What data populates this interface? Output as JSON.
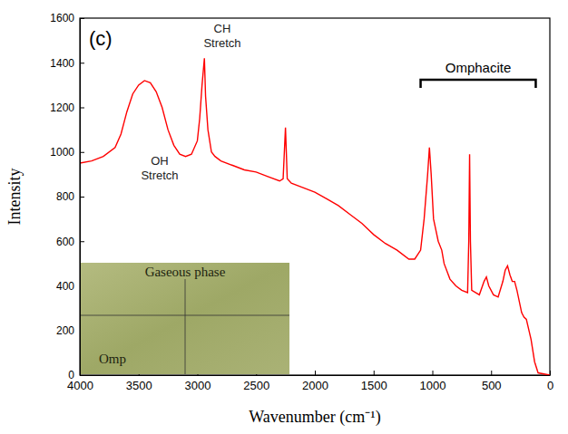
{
  "chart_data": {
    "type": "line",
    "panel_label": "(c)",
    "x_label": "Wavenumber (cm⁻¹)",
    "y_label": "Intensity",
    "color": "#ff0000",
    "xlim": [
      4000,
      0
    ],
    "ylim": [
      0,
      1600
    ],
    "xticks": [
      4000,
      3500,
      3000,
      2500,
      2000,
      1500,
      1000,
      500,
      0
    ],
    "yticks": [
      0,
      200,
      400,
      600,
      800,
      1000,
      1200,
      1400,
      1600
    ],
    "x": [
      4000,
      3900,
      3800,
      3700,
      3650,
      3600,
      3550,
      3500,
      3450,
      3400,
      3350,
      3300,
      3250,
      3200,
      3150,
      3100,
      3050,
      3000,
      2980,
      2960,
      2940,
      2930,
      2910,
      2880,
      2850,
      2800,
      2700,
      2600,
      2500,
      2400,
      2300,
      2270,
      2250,
      2235,
      2200,
      2100,
      2000,
      1900,
      1800,
      1700,
      1600,
      1500,
      1400,
      1300,
      1200,
      1150,
      1100,
      1070,
      1040,
      1025,
      1010,
      990,
      950,
      920,
      900,
      850,
      800,
      750,
      700,
      690,
      683,
      676,
      665,
      600,
      560,
      540,
      520,
      480,
      440,
      400,
      380,
      360,
      340,
      320,
      300,
      280,
      240,
      220,
      200,
      160,
      130,
      100,
      50,
      0
    ],
    "values": [
      950,
      960,
      980,
      1020,
      1080,
      1180,
      1260,
      1300,
      1320,
      1310,
      1270,
      1200,
      1100,
      1030,
      990,
      980,
      990,
      1050,
      1150,
      1300,
      1420,
      1250,
      1100,
      1000,
      980,
      960,
      940,
      920,
      910,
      890,
      870,
      880,
      1110,
      880,
      860,
      840,
      820,
      790,
      760,
      720,
      680,
      630,
      590,
      560,
      520,
      520,
      560,
      700,
      900,
      1020,
      900,
      700,
      600,
      560,
      500,
      430,
      400,
      380,
      370,
      600,
      990,
      600,
      380,
      360,
      420,
      440,
      400,
      360,
      350,
      420,
      470,
      490,
      450,
      420,
      420,
      380,
      280,
      260,
      250,
      160,
      60,
      10,
      5,
      0
    ],
    "annotations": [
      {
        "text": "CH Stretch"
      },
      {
        "text": "OH Stretch"
      },
      {
        "text": "Omphacite",
        "range": [
          1100,
          120
        ]
      }
    ],
    "inset": {
      "texts": [
        "Gaseous phase",
        "Omp"
      ]
    }
  }
}
